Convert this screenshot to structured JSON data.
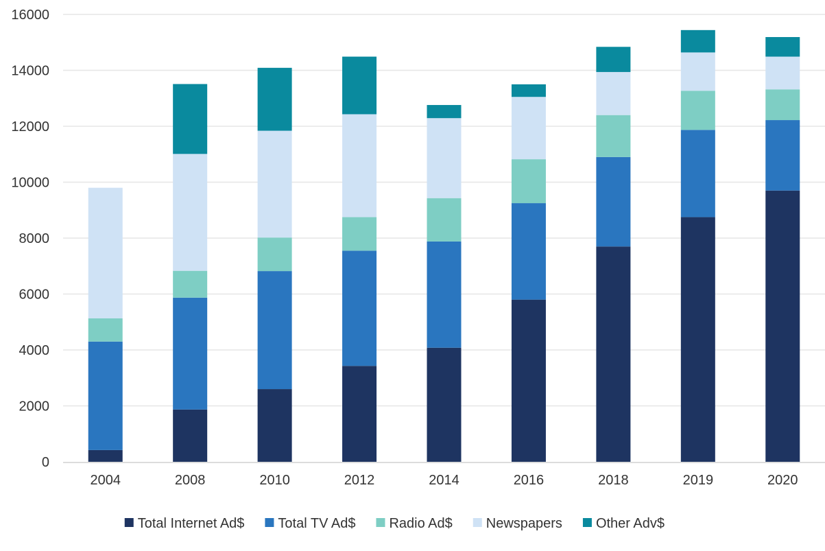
{
  "chart_data": {
    "type": "bar",
    "stacked": true,
    "title": "",
    "xlabel": "",
    "ylabel": "",
    "categories": [
      "2004",
      "2008",
      "2010",
      "2012",
      "2014",
      "2016",
      "2018",
      "2019",
      "2020"
    ],
    "ylim": [
      0,
      16000
    ],
    "yticks": [
      0,
      2000,
      4000,
      6000,
      8000,
      10000,
      12000,
      14000,
      16000
    ],
    "ytick_labels": [
      "0",
      "2000",
      "4000",
      "6000",
      "8000",
      "10000",
      "12000",
      "14000",
      "16000"
    ],
    "grid": true,
    "legend_position": "bottom",
    "series": [
      {
        "name": "Total Internet Ad$",
        "color": "#1e3461",
        "values": [
          420,
          1870,
          2600,
          3430,
          4080,
          5800,
          7700,
          8750,
          9700
        ]
      },
      {
        "name": "Total TV Ad$",
        "color": "#2a76bf",
        "values": [
          3880,
          4000,
          4220,
          4120,
          3800,
          3450,
          3200,
          3120,
          2520
        ]
      },
      {
        "name": "Radio Ad$",
        "color": "#7ecec4",
        "values": [
          830,
          960,
          1200,
          1200,
          1550,
          1570,
          1500,
          1400,
          1100
        ]
      },
      {
        "name": "Newspapers",
        "color": "#cfe2f5",
        "values": [
          4670,
          4180,
          3820,
          3680,
          2860,
          2230,
          1540,
          1370,
          1170
        ]
      },
      {
        "name": "Other Adv$",
        "color": "#0a8a9e",
        "values": [
          0,
          2500,
          2250,
          2060,
          470,
          450,
          900,
          800,
          700
        ]
      }
    ]
  }
}
